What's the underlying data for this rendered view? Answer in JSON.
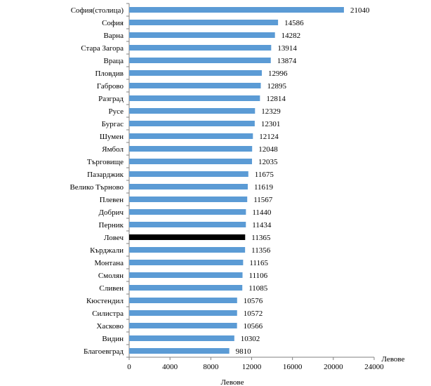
{
  "chart_data": {
    "type": "bar",
    "orientation": "horizontal",
    "categories": [
      "София(столица)",
      "София",
      "Варна",
      "Стара Загора",
      "Враца",
      "Пловдив",
      "Габрово",
      "Разград",
      "Русе",
      "Бургас",
      "Шумен",
      "Ямбол",
      "Търговище",
      "Пазарджик",
      "Велико Търново",
      "Плевен",
      "Добрич",
      "Перник",
      "Ловеч",
      "Кърджали",
      "Монтана",
      "Смолян",
      "Сливен",
      "Кюстендил",
      "Силистра",
      "Хасково",
      "Видин",
      "Благоевград"
    ],
    "values": [
      21040,
      14586,
      14282,
      13914,
      13874,
      12996,
      12895,
      12814,
      12329,
      12301,
      12124,
      12048,
      12035,
      11675,
      11619,
      11567,
      11440,
      11434,
      11365,
      11356,
      11165,
      11106,
      11085,
      10576,
      10572,
      10566,
      10302,
      9810
    ],
    "highlight_category": "Ловеч",
    "bar_color": "#5b9bd5",
    "highlight_color": "#000000",
    "xlim": [
      0,
      24000
    ],
    "xticks": [
      "0",
      "4000",
      "8000",
      "12000",
      "16000",
      "20000",
      "24000"
    ],
    "xlabel": "Левове",
    "unit_label": "Левове",
    "grid": false,
    "legend": "none"
  }
}
